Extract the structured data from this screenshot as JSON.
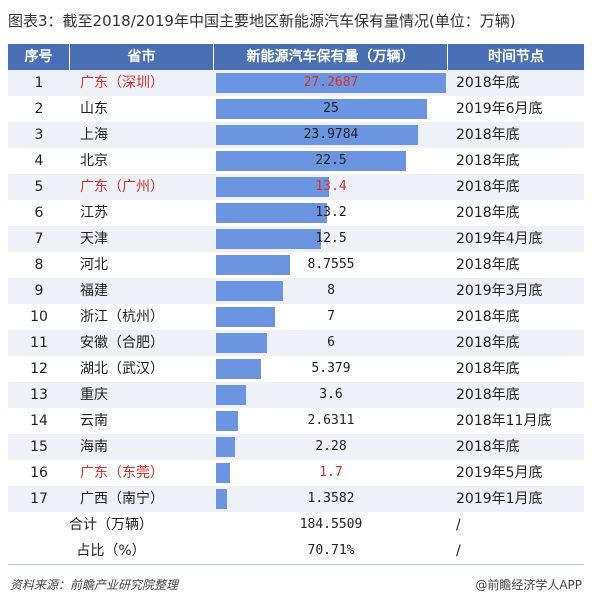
{
  "title": "图表3：截至2018/2019年中国主要地区新能源汽车保有量情况(单位：万辆)",
  "headers": [
    "序号",
    "省市",
    "新能源汽车保有量（万辆）",
    "时间节点"
  ],
  "max_value": 27.2687,
  "rows": [
    {
      "no": "1",
      "region": "广东（深圳）",
      "value": "27.2687",
      "time": "2018年底",
      "red": true
    },
    {
      "no": "2",
      "region": "山东",
      "value": "25",
      "time": "2019年6月底",
      "red": false
    },
    {
      "no": "3",
      "region": "上海",
      "value": "23.9784",
      "time": "2018年底",
      "red": false
    },
    {
      "no": "4",
      "region": "北京",
      "value": "22.5",
      "time": "2018年底",
      "red": false
    },
    {
      "no": "5",
      "region": "广东（广州）",
      "value": "13.4",
      "time": "2018年底",
      "red": true
    },
    {
      "no": "6",
      "region": "江苏",
      "value": "13.2",
      "time": "2018年底",
      "red": false
    },
    {
      "no": "7",
      "region": "天津",
      "value": "12.5",
      "time": "2019年4月底",
      "red": false
    },
    {
      "no": "8",
      "region": "河北",
      "value": "8.7555",
      "time": "2018年底",
      "red": false
    },
    {
      "no": "9",
      "region": "福建",
      "value": "8",
      "time": "2019年3月底",
      "red": false
    },
    {
      "no": "10",
      "region": "浙江（杭州）",
      "value": "7",
      "time": "2018年底",
      "red": false
    },
    {
      "no": "11",
      "region": "安徽（合肥）",
      "value": "6",
      "time": "2018年底",
      "red": false
    },
    {
      "no": "12",
      "region": "湖北（武汉）",
      "value": "5.379",
      "time": "2018年底",
      "red": false
    },
    {
      "no": "13",
      "region": "重庆",
      "value": "3.6",
      "time": "2018年底",
      "red": false
    },
    {
      "no": "14",
      "region": "云南",
      "value": "2.6311",
      "time": "2018年11月底",
      "red": false
    },
    {
      "no": "15",
      "region": "海南",
      "value": "2.28",
      "time": "2018年底",
      "red": false
    },
    {
      "no": "16",
      "region": "广东（东莞）",
      "value": "1.7",
      "time": "2019年5月底",
      "red": true
    },
    {
      "no": "17",
      "region": "广西（南宁）",
      "value": "1.3582",
      "time": "2019年1月底",
      "red": false
    }
  ],
  "total": {
    "label": "合计（万辆）",
    "value": "184.5509",
    "time": "/"
  },
  "share": {
    "label": "占比（%）",
    "value": "70.71%",
    "time": "/"
  },
  "footer": {
    "source": "资料来源：前瞻产业研究院整理",
    "brand": "@前瞻经济学人APP"
  },
  "colors": {
    "header": "#4a6fb5",
    "bar": "#6b95e0",
    "highlight": "#d9302c"
  }
}
